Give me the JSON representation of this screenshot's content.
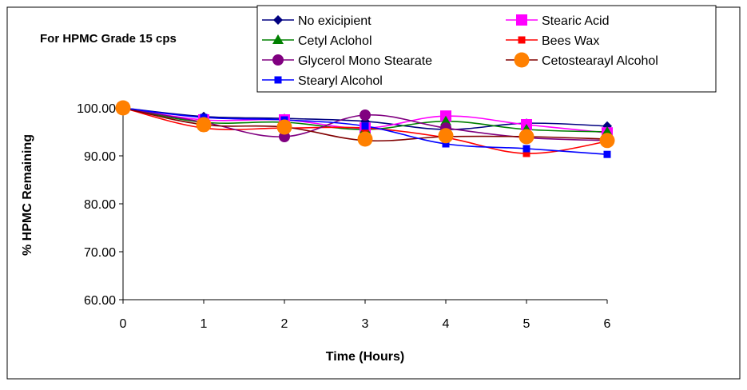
{
  "chart_data": {
    "type": "line",
    "title": "For HPMC Grade 15 cps",
    "xlabel": "Time (Hours)",
    "ylabel": "% HPMC Remaining",
    "x": [
      0,
      1,
      2,
      3,
      4,
      5,
      6
    ],
    "xticks": [
      "0",
      "1",
      "2",
      "3",
      "4",
      "5",
      "6"
    ],
    "yticks": [
      "60.00",
      "70.00",
      "80.00",
      "90.00",
      "100.00"
    ],
    "ylim": [
      60,
      100
    ],
    "xlim": [
      0,
      6
    ],
    "grid": false,
    "legend_position": "top-right",
    "series": [
      {
        "name": "No exicipient",
        "color": "#000080",
        "marker": "diamond",
        "values": [
          100,
          98.2,
          97.8,
          97.2,
          95.5,
          96.8,
          96.2
        ]
      },
      {
        "name": "Stearic Acid",
        "color": "#FF00FF",
        "marker": "square-large",
        "values": [
          100,
          97.5,
          97.5,
          95.8,
          98.3,
          96.5,
          94.8
        ]
      },
      {
        "name": "Cetyl Aclohol",
        "color": "#008000",
        "marker": "triangle",
        "values": [
          100,
          97.0,
          97.0,
          95.5,
          97.2,
          95.5,
          95.0
        ]
      },
      {
        "name": "Bees Wax",
        "color": "#FF0000",
        "marker": "square-small",
        "values": [
          100,
          95.8,
          95.8,
          95.8,
          93.8,
          90.5,
          93.0
        ]
      },
      {
        "name": "Glycerol Mono Stearate",
        "color": "#800080",
        "marker": "circle-small",
        "values": [
          100,
          97.0,
          94.0,
          98.5,
          95.8,
          93.8,
          93.2
        ]
      },
      {
        "name": "Cetostearayl Alcohol",
        "color": "#800000",
        "marker": "none",
        "values": [
          100,
          96.5,
          96.0,
          93.2,
          94.0,
          94.0,
          93.5
        ]
      },
      {
        "name": "Stearyl Alcohol",
        "color": "#0000FF",
        "marker": "square-small",
        "values": [
          100,
          98.0,
          97.5,
          96.2,
          92.5,
          91.5,
          90.3
        ]
      },
      {
        "name": "Cetostearayl Alcohol markers",
        "color": "#FF8000",
        "marker": "circle-large",
        "values": [
          100,
          96.5,
          96.0,
          93.5,
          94.2,
          94.0,
          93.2
        ],
        "legend_ref": "Cetostearayl Alcohol"
      }
    ]
  }
}
